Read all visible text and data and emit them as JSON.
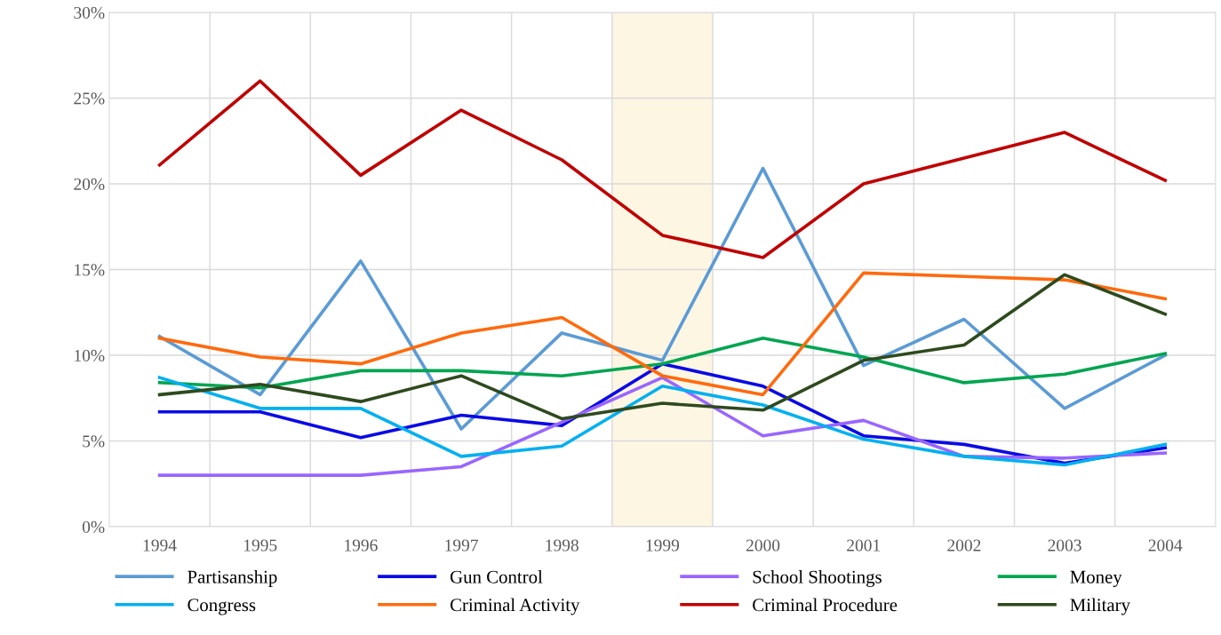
{
  "chart_data": {
    "type": "line",
    "categories": [
      "1994",
      "1995",
      "1996",
      "1997",
      "1998",
      "1999",
      "2000",
      "2001",
      "2002",
      "2003",
      "2004"
    ],
    "series": [
      {
        "name": "Partisanship",
        "color": "#5b9bd5",
        "values": [
          11.1,
          7.7,
          15.5,
          5.7,
          11.3,
          9.7,
          20.9,
          9.4,
          12.1,
          6.9,
          10.0
        ]
      },
      {
        "name": "Gun Control",
        "color": "#0a0ae6",
        "values": [
          6.7,
          6.7,
          5.2,
          6.5,
          5.9,
          9.5,
          8.2,
          5.3,
          4.8,
          3.7,
          4.6
        ]
      },
      {
        "name": "School Shootings",
        "color": "#9966ff",
        "values": [
          3.0,
          3.0,
          3.0,
          3.5,
          6.1,
          8.7,
          5.3,
          6.2,
          4.1,
          4.0,
          4.3
        ]
      },
      {
        "name": "Money",
        "color": "#00a550",
        "values": [
          8.4,
          8.1,
          9.1,
          9.1,
          8.8,
          9.5,
          11.0,
          9.9,
          8.4,
          8.9,
          10.1
        ]
      },
      {
        "name": "Congress",
        "color": "#00b0f0",
        "values": [
          8.7,
          6.9,
          6.9,
          4.1,
          4.7,
          8.2,
          7.1,
          5.1,
          4.1,
          3.6,
          4.8
        ]
      },
      {
        "name": "Criminal Activity",
        "color": "#ff6a0d",
        "values": [
          11.0,
          9.9,
          9.5,
          11.3,
          12.2,
          8.8,
          7.7,
          14.8,
          14.6,
          14.4,
          13.3
        ]
      },
      {
        "name": "Criminal Procedure",
        "color": "#c00000",
        "values": [
          21.1,
          26.0,
          20.5,
          24.3,
          21.4,
          17.0,
          15.7,
          20.0,
          21.5,
          23.0,
          20.2
        ]
      },
      {
        "name": "Military",
        "color": "#2e4a1e",
        "values": [
          7.7,
          8.3,
          7.3,
          8.8,
          6.3,
          7.2,
          6.8,
          9.7,
          10.6,
          14.7,
          12.4
        ]
      }
    ],
    "ylim": [
      0,
      30
    ],
    "yticks": [
      {
        "value": 0,
        "label": "0%"
      },
      {
        "value": 5,
        "label": "5%"
      },
      {
        "value": 10,
        "label": "10%"
      },
      {
        "value": 15,
        "label": "15%"
      },
      {
        "value": 20,
        "label": "20%"
      },
      {
        "value": 25,
        "label": "25%"
      },
      {
        "value": 30,
        "label": "30%"
      }
    ],
    "bands": [
      {
        "axis": "x",
        "from": "1999",
        "to": "1999",
        "color": "#fdf6e3"
      }
    ],
    "grid": true,
    "legend": "bottom",
    "marker": "none",
    "line_style": "solid"
  }
}
